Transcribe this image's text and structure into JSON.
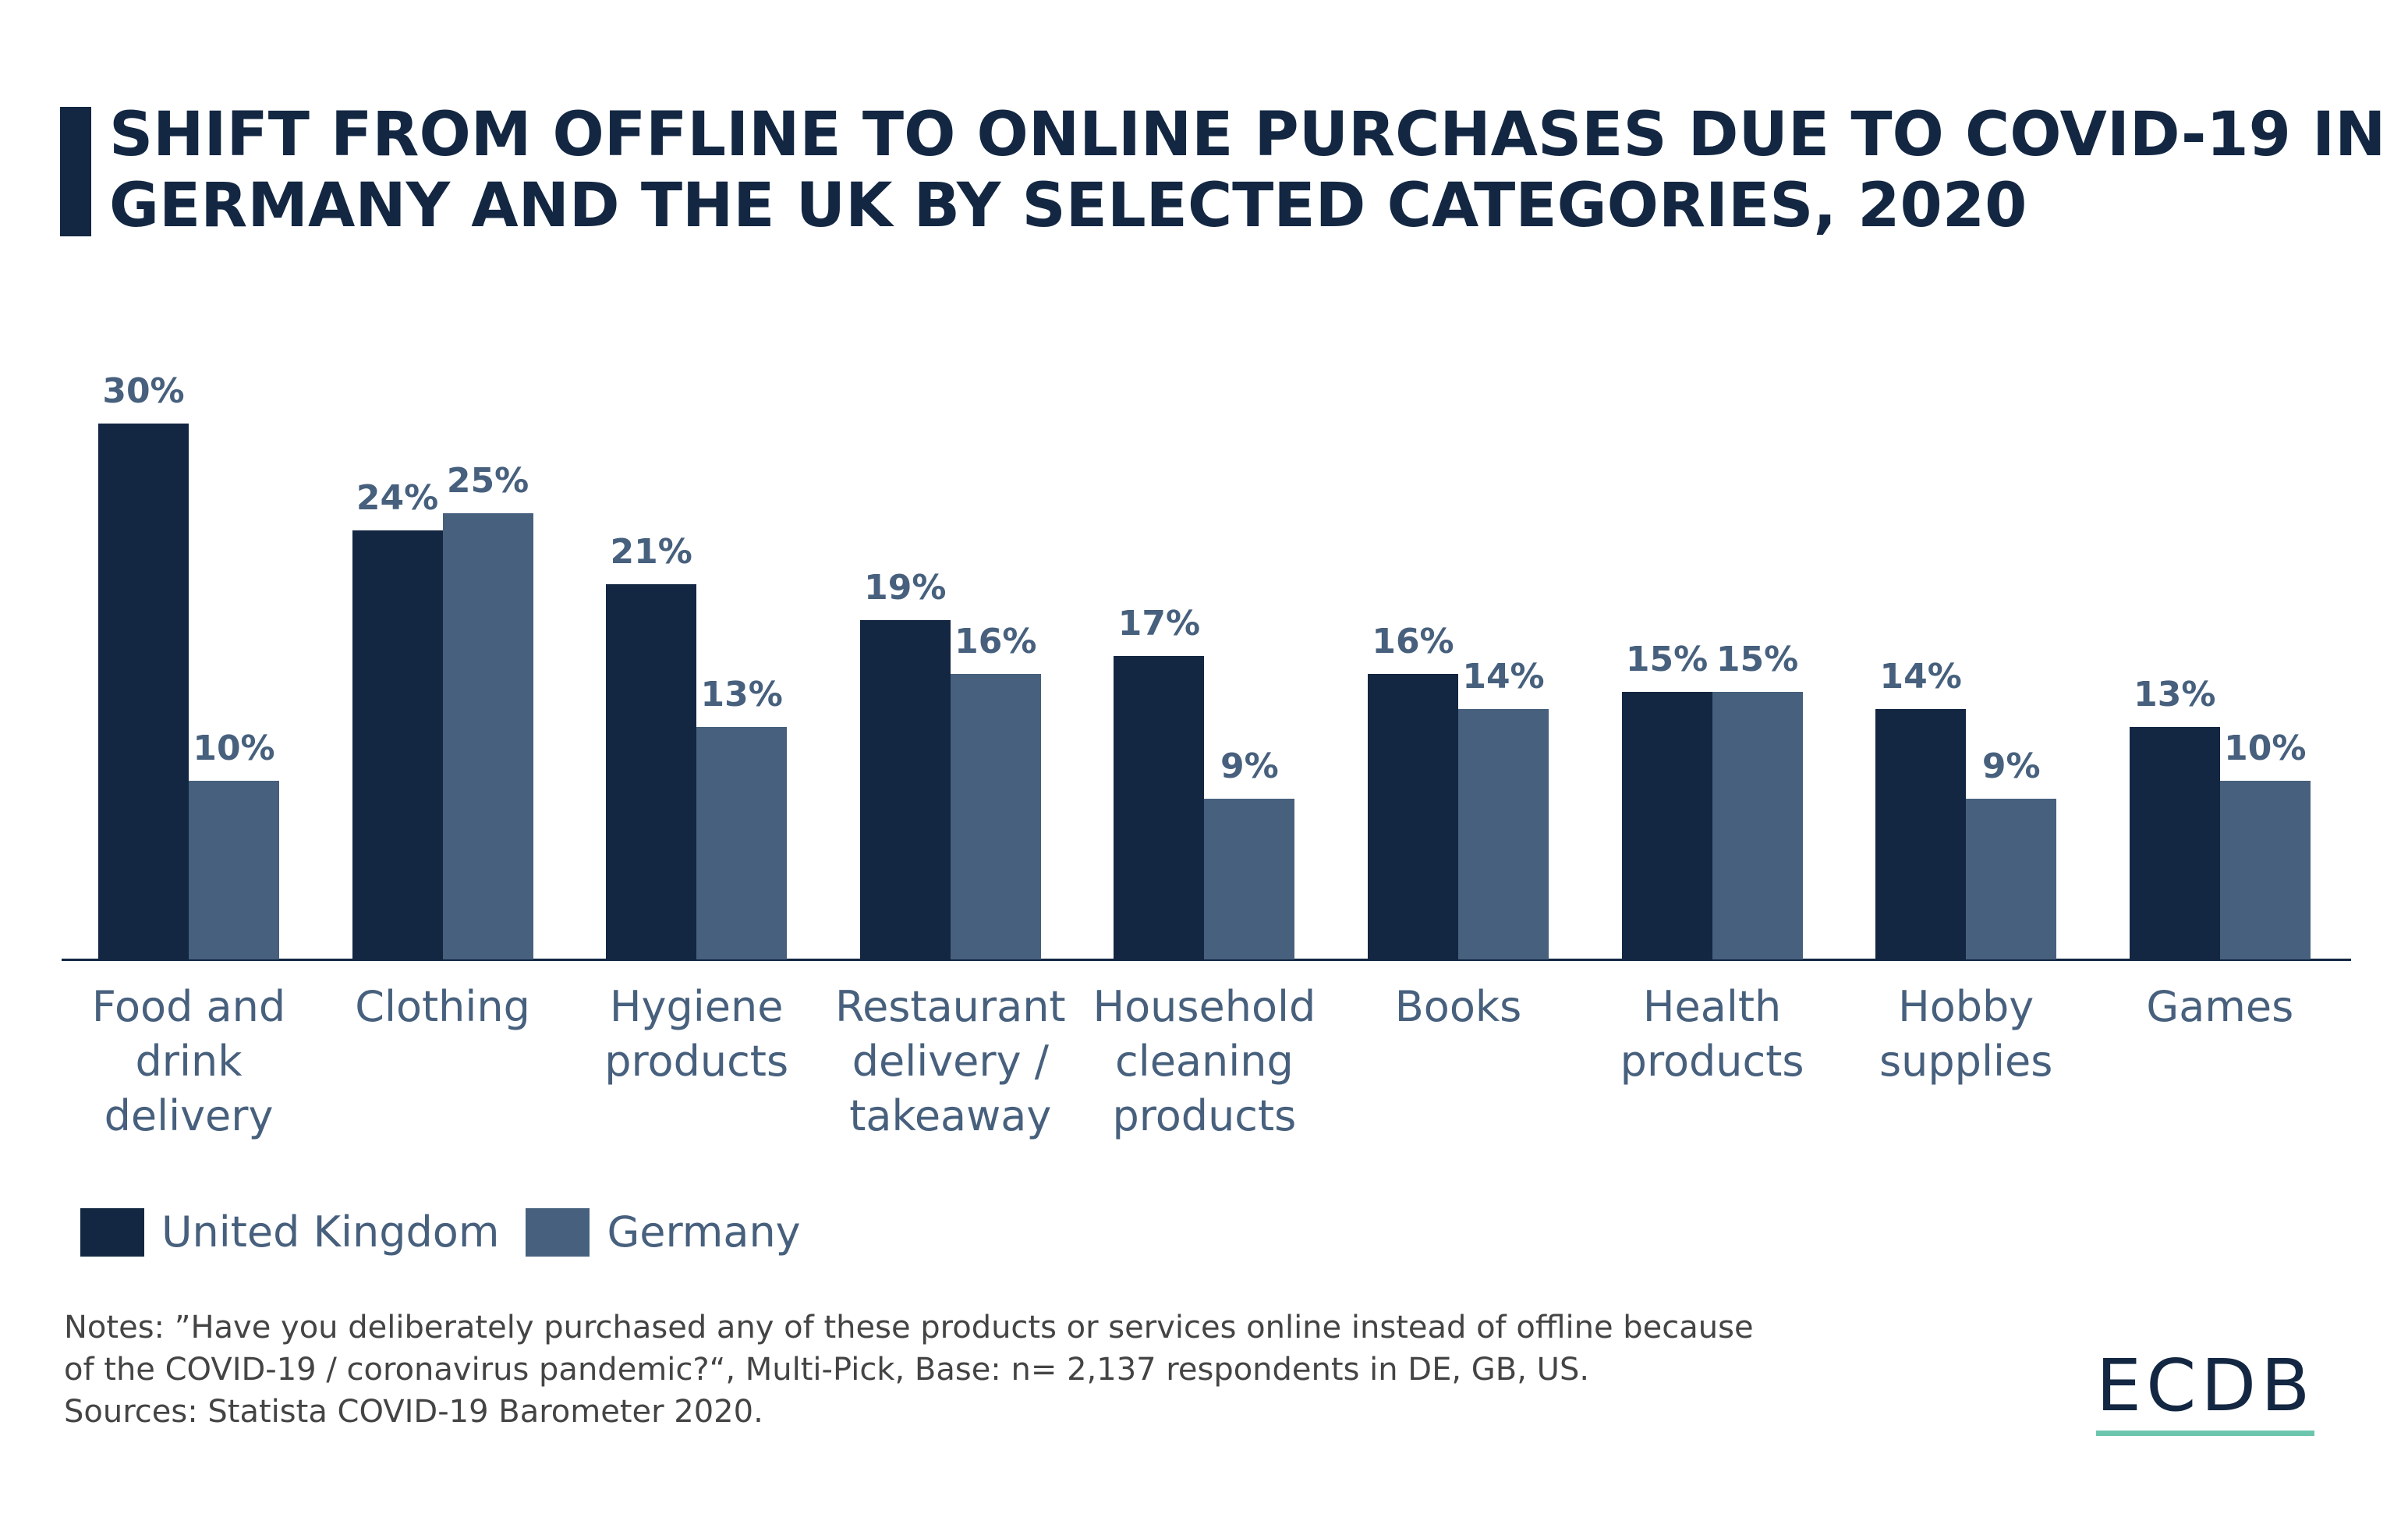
{
  "header": {
    "title_lines": [
      "SHIFT FROM OFFLINE TO ONLINE PURCHASES DUE TO COVID-19 IN",
      "GERMANY AND THE UK BY SELECTED CATEGORIES, 2020"
    ],
    "accent_color": "#132742"
  },
  "chart_data": {
    "type": "bar",
    "title": "SHIFT FROM OFFLINE TO ONLINE PURCHASES DUE TO COVID-19 IN GERMANY AND THE UK BY SELECTED CATEGORIES, 2020",
    "xlabel": "",
    "ylabel": "",
    "ylim": [
      0,
      30
    ],
    "grid": false,
    "legend_position": "bottom-left",
    "value_suffix": "%",
    "categories": [
      "Food and drink delivery",
      "Clothing",
      "Hygiene products",
      "Restaurant delivery / takeaway",
      "Household cleaning products",
      "Books",
      "Health products",
      "Hobby supplies",
      "Games"
    ],
    "category_labels": [
      "Food and\ndrink\ndelivery",
      "Clothing",
      "Hygiene\nproducts",
      "Restaurant\ndelivery /\ntakeaway",
      "Household\ncleaning\nproducts",
      "Books",
      "Health\nproducts",
      "Hobby\nsupplies",
      "Games"
    ],
    "series": [
      {
        "name": "United Kingdom",
        "color": "#132742",
        "values": [
          30,
          24,
          21,
          19,
          17,
          16,
          15,
          14,
          13
        ]
      },
      {
        "name": "Germany",
        "color": "#47607d",
        "values": [
          10,
          25,
          13,
          16,
          9,
          14,
          15,
          9,
          10
        ]
      }
    ]
  },
  "legend": {
    "items": [
      {
        "label": "United Kingdom",
        "color": "#132742"
      },
      {
        "label": "Germany",
        "color": "#47607d"
      }
    ]
  },
  "footer": {
    "notes_lines": [
      "Notes: ”Have you deliberately purchased any of these products or services online instead of offline because",
      "of the COVID-19 / coronavirus pandemic?“, Multi-Pick, Base: n= 2,137 respondents in DE, GB, US.",
      "Sources: Statista COVID-19 Barometer 2020."
    ],
    "logo_text": "ECDB",
    "logo_underline_color": "#6cc6ae"
  }
}
